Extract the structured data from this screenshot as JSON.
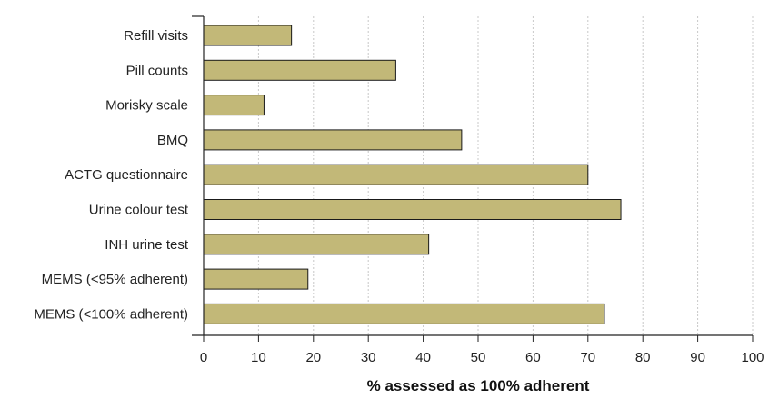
{
  "chart_data": {
    "type": "bar",
    "orientation": "horizontal",
    "categories": [
      "Refill visits",
      "Pill counts",
      "Morisky scale",
      "BMQ",
      "ACTG questionnaire",
      "Urine colour test",
      "INH urine test",
      "MEMS (<95% adherent)",
      "MEMS (<100% adherent)"
    ],
    "values": [
      16,
      35,
      11,
      47,
      70,
      76,
      41,
      19,
      73
    ],
    "xlabel": "% assessed as 100% adherent",
    "ylabel": "",
    "xlim": [
      0,
      100
    ],
    "xticks": [
      0,
      10,
      20,
      30,
      40,
      50,
      60,
      70,
      80,
      90,
      100
    ],
    "grid": "vertical dotted",
    "legend": "none",
    "colors": {
      "bar_fill": "#c2b878",
      "bar_stroke": "#1a1a1a",
      "grid": "#c8c8c8",
      "axis": "#222222"
    }
  }
}
